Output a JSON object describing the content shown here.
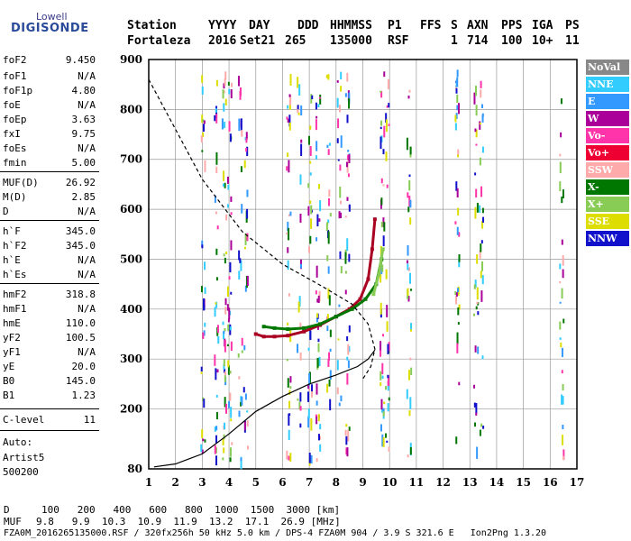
{
  "logo": {
    "line1": "Lowell",
    "line2": "DIGISONDE"
  },
  "header": {
    "labels": [
      "Station",
      "YYYY",
      "DAY",
      "DDD",
      "HHMMSS",
      "P1",
      "FFS",
      "S",
      "AXN",
      "PPS",
      "IGA",
      "PS"
    ],
    "values": [
      "Fortaleza",
      "2016",
      "Set21",
      "265",
      "135000",
      "RSF",
      "1",
      "714",
      "100",
      "10+",
      "11"
    ]
  },
  "params": [
    {
      "name": "foF2",
      "value": "9.450"
    },
    {
      "name": "foF1",
      "value": "N/A"
    },
    {
      "name": "foF1p",
      "value": "4.80"
    },
    {
      "name": "foE",
      "value": "N/A"
    },
    {
      "name": "foEp",
      "value": "3.63"
    },
    {
      "name": "fxI",
      "value": "9.75"
    },
    {
      "name": "foEs",
      "value": "N/A"
    },
    {
      "name": "fmin",
      "value": "5.00"
    },
    {
      "name": "MUF(D)",
      "value": "26.92"
    },
    {
      "name": "M(D)",
      "value": "2.85"
    },
    {
      "name": "D",
      "value": "N/A"
    },
    {
      "name": "h`F",
      "value": "345.0"
    },
    {
      "name": "h`F2",
      "value": "345.0"
    },
    {
      "name": "h`E",
      "value": "N/A"
    },
    {
      "name": "h`Es",
      "value": "N/A"
    },
    {
      "name": "hmF2",
      "value": "318.8"
    },
    {
      "name": "hmF1",
      "value": "N/A"
    },
    {
      "name": "hmE",
      "value": "110.0"
    },
    {
      "name": "yF2",
      "value": "100.5"
    },
    {
      "name": "yF1",
      "value": "N/A"
    },
    {
      "name": "yE",
      "value": "20.0"
    },
    {
      "name": "B0",
      "value": "145.0"
    },
    {
      "name": "B1",
      "value": "1.23"
    },
    {
      "name": "C-level",
      "value": "11"
    }
  ],
  "auto": {
    "line1": "Auto:",
    "line2": "Artist5",
    "line3": "500200"
  },
  "legend": [
    {
      "label": "NoVal",
      "color": "#888888"
    },
    {
      "label": "NNE",
      "color": "#33ccff"
    },
    {
      "label": "E",
      "color": "#3399ff"
    },
    {
      "label": "W",
      "color": "#aa0099"
    },
    {
      "label": "Vo-",
      "color": "#ff33aa"
    },
    {
      "label": "Vo+",
      "color": "#ee0033"
    },
    {
      "label": "SSW",
      "color": "#ffaaaa"
    },
    {
      "label": "X-",
      "color": "#007700"
    },
    {
      "label": "X+",
      "color": "#88cc55"
    },
    {
      "label": "SSE",
      "color": "#dddd00"
    },
    {
      "label": "NNW",
      "color": "#1111cc"
    }
  ],
  "footer": {
    "d_label": "D",
    "d_values": "100   200   400   600   800  1000  1500  3000 [km]",
    "muf_label": "MUF",
    "muf_values": "9.8   9.9  10.3  10.9  11.9  13.2  17.1  26.9 [MHz]",
    "info": "FZA0M_2016265135000.RSF / 320fx256h 50 kHz 5.0 km / DPS-4 FZA0M 904 / 3.9 S 321.6 E   Ion2Png 1.3.20"
  },
  "chart_data": {
    "type": "scatter",
    "xlim": [
      1,
      17
    ],
    "ylim": [
      80,
      900
    ],
    "xticks": [
      1,
      2,
      3,
      4,
      5,
      6,
      7,
      8,
      9,
      10,
      11,
      12,
      13,
      14,
      15,
      16,
      17
    ],
    "yticks": [
      80,
      200,
      300,
      400,
      500,
      600,
      700,
      800,
      900
    ],
    "grid": true,
    "series": [
      {
        "name": "Vo+",
        "color": "#aa0022",
        "x": [
          5.0,
          5.3,
          5.7,
          6.2,
          6.8,
          7.4,
          8.0,
          8.5,
          8.9,
          9.2,
          9.35,
          9.45
        ],
        "y": [
          350,
          345,
          345,
          347,
          355,
          368,
          385,
          400,
          420,
          460,
          520,
          580
        ]
      },
      {
        "name": "X-",
        "color": "#007700",
        "x": [
          5.3,
          5.7,
          6.2,
          6.8,
          7.4,
          8.0,
          8.6,
          9.1,
          9.5,
          9.7
        ],
        "y": [
          365,
          362,
          360,
          362,
          370,
          385,
          400,
          420,
          450,
          500
        ]
      },
      {
        "name": "X+",
        "color": "#88cc55",
        "x": [
          9.4,
          9.6,
          9.75
        ],
        "y": [
          430,
          470,
          520
        ]
      },
      {
        "name": "",
        "color": "#000000",
        "x": [
          1.2,
          2.0,
          3.0,
          4.0,
          5.0,
          6.0,
          7.0,
          8.0,
          8.8,
          9.2,
          9.45
        ],
        "y": [
          84,
          90,
          110,
          150,
          195,
          225,
          250,
          268,
          285,
          300,
          318
        ]
      },
      {
        "name": "",
        "color": "#000000",
        "x": [
          1.0,
          1.8,
          3.0,
          4.5,
          6.0,
          7.5,
          8.6,
          9.2,
          9.45,
          9.3,
          9.0
        ],
        "y": [
          860,
          780,
          660,
          555,
          490,
          445,
          410,
          370,
          320,
          285,
          260
        ]
      }
    ]
  }
}
